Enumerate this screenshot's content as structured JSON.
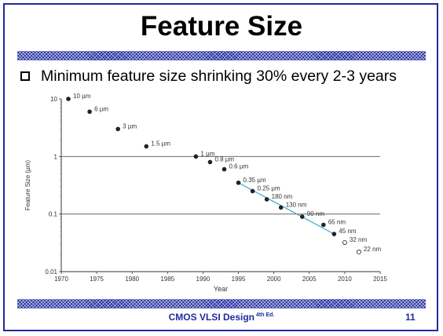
{
  "slide": {
    "title": "Feature Size",
    "bullet": "Minimum feature size shrinking 30% every 2-3 years",
    "footer": "CMOS VLSI Design",
    "footer_sup": "4th Ed.",
    "page_number": "11"
  },
  "colors": {
    "border": "#1f2a9c",
    "trend_line": "#3aa6d0",
    "point": "#222222"
  },
  "chart_data": {
    "type": "scatter",
    "xlabel": "Year",
    "ylabel": "Feature Size (µm)",
    "yscale": "log",
    "xlim": [
      1970,
      2015
    ],
    "ylim": [
      0.01,
      10
    ],
    "x_ticks": [
      1970,
      1975,
      1980,
      1985,
      1990,
      1995,
      2000,
      2005,
      2010,
      2015
    ],
    "y_ticks": [
      {
        "value": 10,
        "label": "10"
      },
      {
        "value": 1,
        "label": "1"
      },
      {
        "value": 0.1,
        "label": "0.1"
      },
      {
        "value": 0.01,
        "label": "0.01"
      }
    ],
    "gridlines_y": [
      1,
      0.1
    ],
    "points": [
      {
        "x": 1971,
        "y": 10,
        "label": "10 µm",
        "filled": true
      },
      {
        "x": 1974,
        "y": 6,
        "label": "6 µm",
        "filled": true
      },
      {
        "x": 1978,
        "y": 3,
        "label": "3 µm",
        "filled": true
      },
      {
        "x": 1982,
        "y": 1.5,
        "label": "1.5 µm",
        "filled": true
      },
      {
        "x": 1989,
        "y": 1,
        "label": "1 µm",
        "filled": true
      },
      {
        "x": 1991,
        "y": 0.8,
        "label": "0.8 µm",
        "filled": true
      },
      {
        "x": 1993,
        "y": 0.6,
        "label": "0.6 µm",
        "filled": true
      },
      {
        "x": 1995,
        "y": 0.35,
        "label": "0.35 µm",
        "filled": true
      },
      {
        "x": 1997,
        "y": 0.25,
        "label": "0.25 µm",
        "filled": true
      },
      {
        "x": 1999,
        "y": 0.18,
        "label": "180 nm",
        "filled": true
      },
      {
        "x": 2001,
        "y": 0.13,
        "label": "130 nm",
        "filled": true
      },
      {
        "x": 2004,
        "y": 0.09,
        "label": "90 nm",
        "filled": true
      },
      {
        "x": 2007,
        "y": 0.065,
        "label": "65 nm",
        "filled": true
      },
      {
        "x": 2008.5,
        "y": 0.045,
        "label": "45 nm",
        "filled": true
      },
      {
        "x": 2010,
        "y": 0.032,
        "label": "32 nm",
        "filled": false
      },
      {
        "x": 2012,
        "y": 0.022,
        "label": "22 nm",
        "filled": false
      }
    ],
    "trend_line": {
      "x": [
        1995,
        2008.5
      ],
      "y": [
        0.35,
        0.045
      ]
    }
  }
}
